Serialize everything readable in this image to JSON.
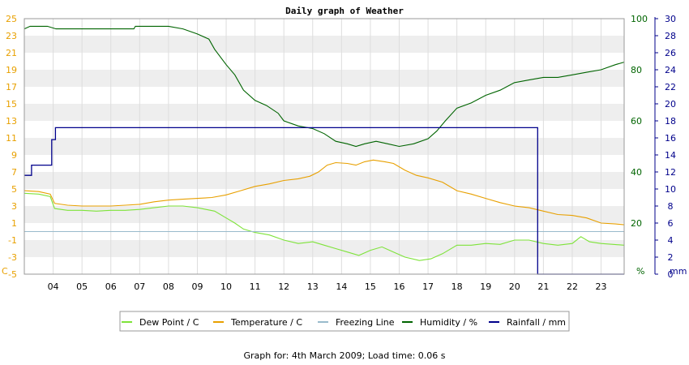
{
  "chart_data": {
    "type": "line",
    "title": "Daily graph of Weather",
    "x_ticks": [
      "04",
      "05",
      "06",
      "07",
      "08",
      "09",
      "10",
      "11",
      "12",
      "13",
      "14",
      "15",
      "16",
      "17",
      "18",
      "19",
      "20",
      "21",
      "22",
      "23"
    ],
    "x_range_hours": [
      3.0,
      23.8
    ],
    "axes": {
      "temp": {
        "unit": "C",
        "ticks": [
          "25",
          "23",
          "21",
          "19",
          "17",
          "15",
          "13",
          "11",
          "9",
          "7",
          "5",
          "3",
          "1",
          "-1",
          "-3",
          "-5"
        ],
        "range": [
          -5,
          25
        ],
        "color": "#e8a000"
      },
      "humidity": {
        "unit": "%",
        "ticks": [
          "100",
          "80",
          "60",
          "40",
          "20"
        ],
        "range": [
          0,
          100
        ],
        "color": "#006400"
      },
      "rainfall": {
        "unit": "mm",
        "ticks": [
          "30",
          "28",
          "26",
          "24",
          "22",
          "20",
          "18",
          "16",
          "14",
          "12",
          "10",
          "8",
          "6",
          "4",
          "2",
          "0"
        ],
        "range": [
          0,
          30
        ],
        "color": "#00008b"
      }
    },
    "series": [
      {
        "name": "Dew Point / C",
        "axis": "temp",
        "color": "#7ee33a",
        "points": [
          [
            3.0,
            4.5
          ],
          [
            3.5,
            4.4
          ],
          [
            3.9,
            4.1
          ],
          [
            4.05,
            2.7
          ],
          [
            4.5,
            2.5
          ],
          [
            5,
            2.5
          ],
          [
            5.5,
            2.4
          ],
          [
            6,
            2.5
          ],
          [
            6.5,
            2.5
          ],
          [
            7,
            2.6
          ],
          [
            7.5,
            2.8
          ],
          [
            8,
            3.0
          ],
          [
            8.5,
            3.0
          ],
          [
            9,
            2.8
          ],
          [
            9.3,
            2.6
          ],
          [
            9.6,
            2.4
          ],
          [
            10,
            1.6
          ],
          [
            10.3,
            1.0
          ],
          [
            10.6,
            0.3
          ],
          [
            11,
            -0.1
          ],
          [
            11.5,
            -0.4
          ],
          [
            12,
            -1.0
          ],
          [
            12.5,
            -1.4
          ],
          [
            13,
            -1.2
          ],
          [
            13.4,
            -1.6
          ],
          [
            13.8,
            -2.0
          ],
          [
            14.2,
            -2.4
          ],
          [
            14.6,
            -2.8
          ],
          [
            15,
            -2.2
          ],
          [
            15.4,
            -1.8
          ],
          [
            15.8,
            -2.4
          ],
          [
            16.2,
            -3.0
          ],
          [
            16.7,
            -3.4
          ],
          [
            17.1,
            -3.2
          ],
          [
            17.5,
            -2.6
          ],
          [
            18,
            -1.6
          ],
          [
            18.5,
            -1.6
          ],
          [
            19,
            -1.4
          ],
          [
            19.5,
            -1.5
          ],
          [
            20,
            -1.0
          ],
          [
            20.5,
            -1.0
          ],
          [
            21,
            -1.4
          ],
          [
            21.5,
            -1.6
          ],
          [
            22,
            -1.4
          ],
          [
            22.3,
            -0.6
          ],
          [
            22.6,
            -1.2
          ],
          [
            23,
            -1.4
          ],
          [
            23.8,
            -1.6
          ]
        ]
      },
      {
        "name": "Temperature / C",
        "axis": "temp",
        "color": "#e8a000",
        "points": [
          [
            3.0,
            4.8
          ],
          [
            3.5,
            4.7
          ],
          [
            3.9,
            4.4
          ],
          [
            4.05,
            3.3
          ],
          [
            4.5,
            3.1
          ],
          [
            5,
            3.0
          ],
          [
            5.5,
            3.0
          ],
          [
            6,
            3.0
          ],
          [
            6.5,
            3.1
          ],
          [
            7,
            3.2
          ],
          [
            7.5,
            3.5
          ],
          [
            8,
            3.7
          ],
          [
            8.5,
            3.8
          ],
          [
            9,
            3.9
          ],
          [
            9.5,
            4.0
          ],
          [
            10,
            4.3
          ],
          [
            10.5,
            4.8
          ],
          [
            11,
            5.3
          ],
          [
            11.5,
            5.6
          ],
          [
            12,
            6.0
          ],
          [
            12.5,
            6.2
          ],
          [
            12.9,
            6.5
          ],
          [
            13.2,
            7.0
          ],
          [
            13.5,
            7.8
          ],
          [
            13.8,
            8.1
          ],
          [
            14.2,
            8.0
          ],
          [
            14.5,
            7.8
          ],
          [
            14.8,
            8.2
          ],
          [
            15.1,
            8.4
          ],
          [
            15.5,
            8.2
          ],
          [
            15.8,
            8.0
          ],
          [
            16.2,
            7.2
          ],
          [
            16.6,
            6.6
          ],
          [
            17,
            6.3
          ],
          [
            17.5,
            5.8
          ],
          [
            18,
            4.8
          ],
          [
            18.5,
            4.4
          ],
          [
            19,
            3.9
          ],
          [
            19.5,
            3.4
          ],
          [
            20,
            3.0
          ],
          [
            20.5,
            2.8
          ],
          [
            21,
            2.4
          ],
          [
            21.5,
            2.0
          ],
          [
            22,
            1.9
          ],
          [
            22.5,
            1.6
          ],
          [
            23,
            1.0
          ],
          [
            23.5,
            0.9
          ],
          [
            23.8,
            0.8
          ]
        ]
      },
      {
        "name": "Freezing Line",
        "axis": "temp",
        "color": "#99bbcc",
        "points": [
          [
            3.0,
            0
          ],
          [
            23.8,
            0
          ]
        ]
      },
      {
        "name": "Humidity / %",
        "axis": "humidity",
        "color": "#006400",
        "points": [
          [
            3.0,
            96
          ],
          [
            3.2,
            97
          ],
          [
            3.4,
            97
          ],
          [
            3.8,
            97
          ],
          [
            4.1,
            96
          ],
          [
            5,
            96
          ],
          [
            6,
            96
          ],
          [
            6.8,
            96
          ],
          [
            6.85,
            97
          ],
          [
            8,
            97
          ],
          [
            8.5,
            96
          ],
          [
            9,
            94
          ],
          [
            9.4,
            92
          ],
          [
            9.6,
            88
          ],
          [
            10,
            82
          ],
          [
            10.3,
            78
          ],
          [
            10.6,
            72
          ],
          [
            11,
            68
          ],
          [
            11.4,
            66
          ],
          [
            11.8,
            63
          ],
          [
            12,
            60
          ],
          [
            12.5,
            58
          ],
          [
            13,
            57
          ],
          [
            13.4,
            55
          ],
          [
            13.8,
            52
          ],
          [
            14.2,
            51
          ],
          [
            14.5,
            50
          ],
          [
            14.8,
            51
          ],
          [
            15.2,
            52
          ],
          [
            15.6,
            51
          ],
          [
            16,
            50
          ],
          [
            16.5,
            51
          ],
          [
            17,
            53
          ],
          [
            17.3,
            56
          ],
          [
            17.6,
            60
          ],
          [
            18,
            65
          ],
          [
            18.5,
            67
          ],
          [
            19,
            70
          ],
          [
            19.5,
            72
          ],
          [
            20,
            75
          ],
          [
            20.5,
            76
          ],
          [
            21,
            77
          ],
          [
            21.5,
            77
          ],
          [
            22,
            78
          ],
          [
            22.5,
            79
          ],
          [
            23,
            80
          ],
          [
            23.5,
            82
          ],
          [
            23.8,
            83
          ]
        ]
      },
      {
        "name": "Rainfall / mm",
        "axis": "rainfall",
        "color": "#00008b",
        "step": true,
        "points": [
          [
            3.0,
            11.6
          ],
          [
            3.25,
            11.6
          ],
          [
            3.25,
            12.8
          ],
          [
            3.95,
            12.8
          ],
          [
            3.95,
            15.8
          ],
          [
            4.08,
            15.8
          ],
          [
            4.08,
            17.2
          ],
          [
            20.8,
            17.2
          ],
          [
            20.8,
            0
          ],
          [
            23.8,
            0
          ]
        ]
      }
    ],
    "legend": {
      "placement": "bottom",
      "entries": [
        "Dew Point / C",
        "Temperature / C",
        "Freezing Line",
        "Humidity / %",
        "Rainfall / mm"
      ]
    },
    "grid": true
  },
  "footer": "Graph for: 4th March 2009; Load time: 0.06 s",
  "colors": {
    "band": "#eeeeee",
    "grid": "#dddddd",
    "frame": "#999999"
  }
}
